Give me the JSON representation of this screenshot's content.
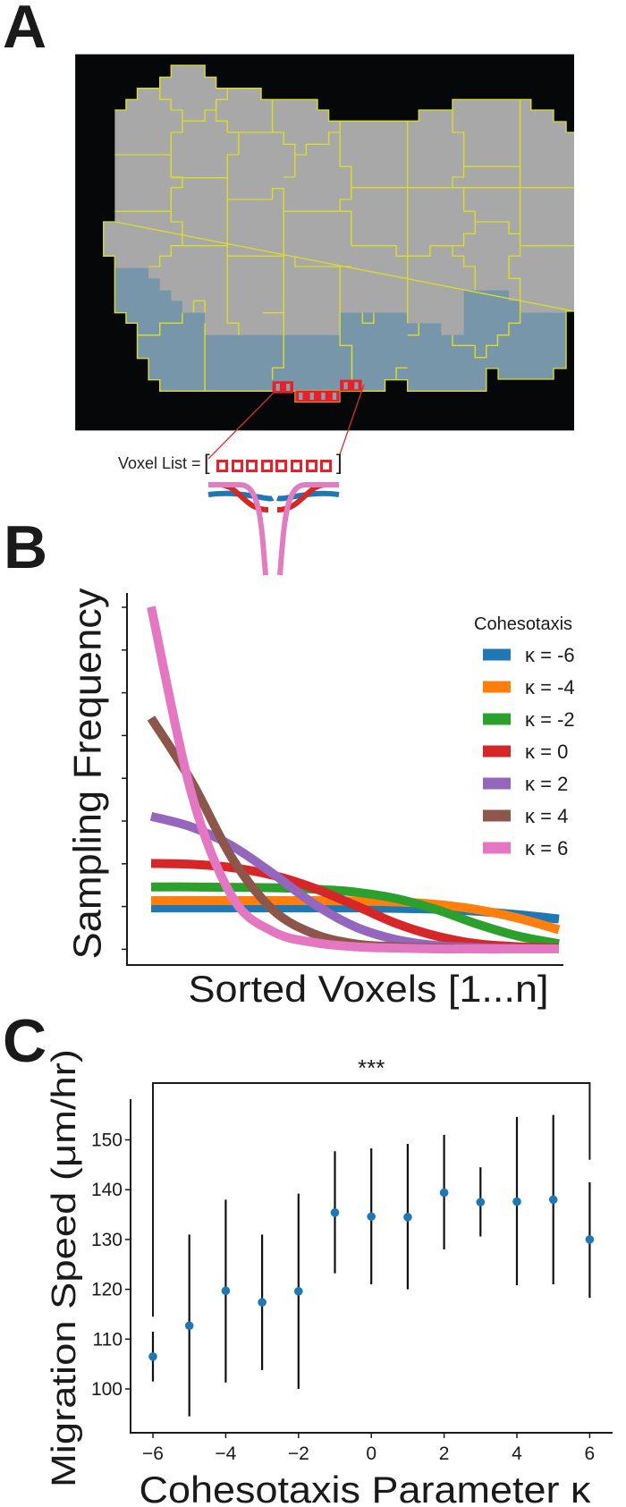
{
  "panels": {
    "a": "A",
    "b": "B",
    "c": "C"
  },
  "panel_a": {
    "voxel_list_label": "Voxel List =",
    "open_bracket": "[",
    "close_bracket": "]",
    "voxel_count": 8,
    "colors": {
      "background": "#050708",
      "cell": "#a8a8a8",
      "edge_cell": "#7896aa",
      "cell_border": "#d8dc2a",
      "voxel": "#e8202a"
    }
  },
  "chart_data": [
    {
      "type": "line",
      "title": "",
      "xlabel": "Sorted Voxels [1...n]",
      "ylabel": "Sampling Frequency",
      "legend_title": "Cohesotaxis",
      "legend_position": "top-right",
      "x": [
        0,
        0.1,
        0.2,
        0.3,
        0.4,
        0.5,
        0.6,
        0.7,
        0.8,
        0.9,
        1.0
      ],
      "xlim": [
        0,
        1.0
      ],
      "ylim": [
        0,
        8
      ],
      "ytick_count": 9,
      "ytick_labels_shown": false,
      "series": [
        {
          "name": "κ = -6",
          "color": "#1f77b4",
          "values": [
            0.96,
            0.96,
            0.96,
            0.96,
            0.96,
            0.96,
            0.95,
            0.93,
            0.88,
            0.8,
            0.7
          ]
        },
        {
          "name": "κ = -4",
          "color": "#ff7f0e",
          "values": [
            1.13,
            1.13,
            1.13,
            1.13,
            1.13,
            1.12,
            1.1,
            1.04,
            0.92,
            0.72,
            0.45
          ]
        },
        {
          "name": "κ = -2",
          "color": "#2ca02c",
          "values": [
            1.45,
            1.45,
            1.44,
            1.43,
            1.4,
            1.33,
            1.18,
            0.92,
            0.58,
            0.3,
            0.12
          ]
        },
        {
          "name": "κ = 0",
          "color": "#d62728",
          "values": [
            2.0,
            1.98,
            1.9,
            1.72,
            1.42,
            1.02,
            0.6,
            0.3,
            0.12,
            0.05,
            0.02
          ]
        },
        {
          "name": "κ = 2",
          "color": "#9467bd",
          "values": [
            3.1,
            2.85,
            2.4,
            1.75,
            1.05,
            0.52,
            0.22,
            0.08,
            0.03,
            0.01,
            0.0
          ]
        },
        {
          "name": "κ = 4",
          "color": "#8c564b",
          "values": [
            5.4,
            3.9,
            2.1,
            0.9,
            0.35,
            0.12,
            0.05,
            0.02,
            0.0,
            0.0,
            0.0
          ]
        },
        {
          "name": "κ = 6",
          "color": "#e377c2",
          "values": [
            8.0,
            3.6,
            1.2,
            0.4,
            0.15,
            0.05,
            0.02,
            0.0,
            0.0,
            0.0,
            0.0
          ]
        }
      ]
    },
    {
      "type": "scatter",
      "title": "",
      "xlabel": "Cohesotaxis Parameter κ",
      "ylabel": "Migration Speed (μm/hr)",
      "marker_color": "#1f77b4",
      "x": [
        -6,
        -5,
        -4,
        -3,
        -2,
        -1,
        0,
        1,
        2,
        3,
        4,
        5,
        6
      ],
      "y": [
        106.5,
        112.7,
        119.7,
        117.4,
        119.6,
        135.4,
        134.6,
        134.5,
        139.4,
        137.5,
        137.6,
        138.0,
        130.0
      ],
      "err_low": [
        101.5,
        94.5,
        101.3,
        103.8,
        100.0,
        123.2,
        121.0,
        120.0,
        128.0,
        130.6,
        120.8,
        121.0,
        118.3
      ],
      "err_high": [
        111.5,
        131.0,
        138.0,
        131.0,
        139.2,
        147.7,
        148.3,
        149.2,
        151.0,
        144.5,
        154.6,
        155.0,
        141.5
      ],
      "xticks": [
        -6,
        -4,
        -2,
        0,
        2,
        4,
        6
      ],
      "xtick_labels": [
        "−6",
        "−4",
        "−2",
        "0",
        "2",
        "4",
        "6"
      ],
      "yticks": [
        100,
        110,
        120,
        130,
        140,
        150
      ],
      "ytick_labels": [
        "100",
        "110",
        "120",
        "130",
        "140",
        "150"
      ],
      "xlim": [
        -6.61,
        6.63
      ],
      "ylim": [
        91.2,
        158.3
      ],
      "significance": {
        "text": "***",
        "from_x": -6,
        "to_x": 6,
        "left_leg_to_y": 114.5,
        "right_leg_to_y": 146
      }
    }
  ]
}
